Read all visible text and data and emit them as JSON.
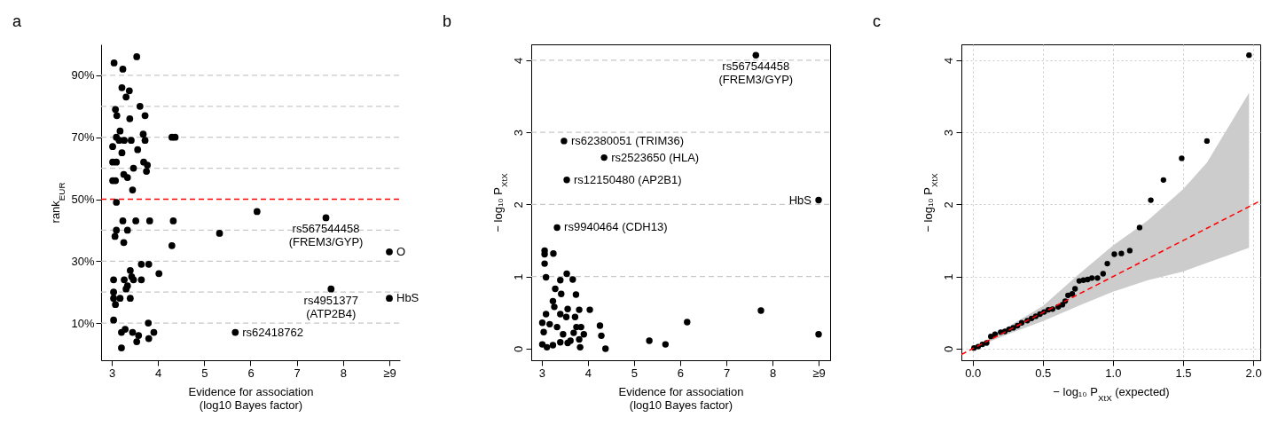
{
  "chart_data": [
    {
      "type": "scatter",
      "title": "a",
      "xlabel": "Evidence for association\n(log10 Bayes factor)",
      "ylabel": "rank$_{EUR}$",
      "marker": "circle",
      "color": "#000000",
      "x": [
        3.54,
        3.05,
        3.24,
        3.22,
        3.38,
        3.31,
        3.08,
        3.11,
        3.61,
        3.72,
        3.39,
        3.18,
        3.1,
        3.68,
        3.02,
        3.16,
        3.27,
        3.42,
        3.22,
        3.56,
        3.72,
        3.02,
        3.1,
        3.47,
        3.69,
        3.77,
        3.75,
        3.26,
        3.34,
        3.02,
        3.08,
        3.45,
        3.1,
        3.24,
        3.52,
        3.82,
        3.1,
        3.34,
        3.07,
        3.26,
        4.33,
        4.3,
        3.64,
        3.8,
        4.02,
        3.4,
        3.43,
        3.04,
        3.27,
        3.47,
        3.64,
        3.34,
        3.04,
        3.31,
        3.04,
        3.18,
        3.4,
        3.08,
        3.04,
        3.79,
        3.21,
        3.29,
        3.45,
        3.54,
        3.91,
        3.8,
        3.21,
        3.58,
        4.3,
        4.37,
        6.14,
        7.63,
        5.33,
        9.0,
        7.74,
        9.0,
        5.67
      ],
      "values": [
        96,
        94,
        92,
        86,
        85,
        83,
        79,
        77,
        80,
        77,
        76,
        72,
        70,
        71,
        67,
        69,
        69,
        69,
        65,
        66,
        69,
        62,
        62,
        60,
        62,
        61,
        59,
        58,
        57,
        56,
        56,
        53,
        49,
        43,
        43,
        43,
        40,
        40,
        38,
        36,
        43,
        35,
        29,
        29,
        26,
        27,
        25,
        24,
        24,
        24,
        24,
        22,
        20,
        21,
        18,
        18,
        18,
        16,
        11,
        10,
        7,
        8,
        7,
        4,
        7,
        5,
        2,
        6,
        70,
        70,
        46,
        44,
        39,
        33,
        21,
        18,
        7
      ],
      "xlim": [
        2.77,
        9.23
      ],
      "ylim": [
        -2,
        100
      ],
      "xticks": [
        3,
        4,
        5,
        6,
        7,
        8,
        {
          "value": 9,
          "label": "≥9"
        }
      ],
      "yticks": [
        {
          "value": 10,
          "label": "10%"
        },
        {
          "value": 30,
          "label": "30%"
        },
        {
          "value": 50,
          "label": "50%"
        },
        {
          "value": 70,
          "label": "70%"
        },
        {
          "value": 90,
          "label": "90%"
        }
      ],
      "ref_lines": [
        {
          "axis": "y",
          "value": 10,
          "color": "#c8c8c8",
          "line_style": "dashed"
        },
        {
          "axis": "y",
          "value": 20,
          "color": "#c8c8c8",
          "line_style": "dashed"
        },
        {
          "axis": "y",
          "value": 30,
          "color": "#c8c8c8",
          "line_style": "dashed"
        },
        {
          "axis": "y",
          "value": 40,
          "color": "#c8c8c8",
          "line_style": "dashed"
        },
        {
          "axis": "y",
          "value": 60,
          "color": "#c8c8c8",
          "line_style": "dashed"
        },
        {
          "axis": "y",
          "value": 70,
          "color": "#c8c8c8",
          "line_style": "dashed"
        },
        {
          "axis": "y",
          "value": 80,
          "color": "#c8c8c8",
          "line_style": "dashed"
        },
        {
          "axis": "y",
          "value": 90,
          "color": "#c8c8c8",
          "line_style": "dashed"
        },
        {
          "axis": "y",
          "value": 50,
          "color": "#ff0000",
          "line_style": "dashed"
        }
      ],
      "annotations": [
        {
          "text": "rs567544458\n(FREM3/GYP)",
          "x": 7.63,
          "y": 44
        },
        {
          "text": "rs4951377\n(ATP2B4)",
          "x": 7.74,
          "y": 21
        },
        {
          "text": "O",
          "x": 9,
          "y": 33
        },
        {
          "text": "HbS",
          "x": 9,
          "y": 18
        },
        {
          "text": "rs62418762",
          "x": 5.67,
          "y": 7
        }
      ]
    },
    {
      "type": "scatter",
      "title": "b",
      "xlabel": "Evidence for association\n(log10 Bayes factor)",
      "ylabel": "− log₁₀ P$_{XtX}$",
      "marker": "circle",
      "color": "#000000",
      "x": [
        7.64,
        3.48,
        4.35,
        3.54,
        9.0,
        3.33,
        3.06,
        3.06,
        3.25,
        3.06,
        3.09,
        3.54,
        3.4,
        3.67,
        3.29,
        3.42,
        3.74,
        3.24,
        3.27,
        3.09,
        3.56,
        3.81,
        4.04,
        3.4,
        3.01,
        3.17,
        3.53,
        3.72,
        3.33,
        3.75,
        3.85,
        3.91,
        3.04,
        4.26,
        4.29,
        3.46,
        3.69,
        3.01,
        3.11,
        3.24,
        3.4,
        3.56,
        3.81,
        3.83,
        4.38,
        3.62,
        5.33,
        5.68,
        6.15,
        7.75,
        9.0
      ],
      "values": [
        4.07,
        2.88,
        2.65,
        2.34,
        2.06,
        1.68,
        1.36,
        1.31,
        1.32,
        1.18,
        0.99,
        1.04,
        0.95,
        0.96,
        0.83,
        0.76,
        0.75,
        0.66,
        0.58,
        0.48,
        0.55,
        0.54,
        0.54,
        0.48,
        0.36,
        0.34,
        0.44,
        0.44,
        0.3,
        0.3,
        0.3,
        0.2,
        0.23,
        0.32,
        0.18,
        0.2,
        0.22,
        0.06,
        0.02,
        0.05,
        0.09,
        0.08,
        0.13,
        0.02,
        0.0,
        0.11,
        0.11,
        0.06,
        0.37,
        0.53,
        0.2
      ],
      "xlim": [
        2.77,
        9.25
      ],
      "ylim": [
        -0.16,
        4.22
      ],
      "xticks": [
        3,
        4,
        5,
        6,
        7,
        8,
        {
          "value": 9,
          "label": "≥9"
        }
      ],
      "yticks": [
        0,
        1,
        2,
        3,
        4
      ],
      "ref_lines": [
        {
          "axis": "y",
          "value": 1,
          "color": "#c8c8c8",
          "line_style": "dashed"
        },
        {
          "axis": "y",
          "value": 2,
          "color": "#c8c8c8",
          "line_style": "dashed"
        },
        {
          "axis": "y",
          "value": 3,
          "color": "#c8c8c8",
          "line_style": "dashed"
        },
        {
          "axis": "y",
          "value": 4,
          "color": "#c8c8c8",
          "line_style": "dashed"
        }
      ],
      "annotations": [
        {
          "text": "rs567544458\n(FREM3/GYP)",
          "x": 7.64,
          "y": 4.07
        },
        {
          "text": "rs62380051 (TRIM36)",
          "x": 3.48,
          "y": 2.88
        },
        {
          "text": "rs2523650 (HLA)",
          "x": 4.35,
          "y": 2.65
        },
        {
          "text": "rs12150480 (AP2B1)",
          "x": 3.54,
          "y": 2.34
        },
        {
          "text": "HbS",
          "x": 9.0,
          "y": 2.06
        },
        {
          "text": "rs9940464 (CDH13)",
          "x": 3.33,
          "y": 1.68
        }
      ]
    },
    {
      "type": "scatter",
      "title": "c",
      "xlabel": "− log₁₀ P$_{XtX}$ (expected)",
      "ylabel": "− log₁₀ P$_{XtX}$",
      "marker": "circle",
      "grid": true,
      "xlim": [
        -0.08,
        2.05
      ],
      "ylim": [
        -0.16,
        4.22
      ],
      "xticks": [
        {
          "value": 0,
          "label": "0.0"
        },
        0.5,
        {
          "value": 1,
          "label": "1.0"
        },
        1.5,
        {
          "value": 2,
          "label": "2.0"
        }
      ],
      "yticks": [
        0,
        1,
        2,
        3,
        4
      ],
      "series": [
        {
          "type": "line",
          "marker": "none",
          "color": "#ff0000",
          "line_style": "dashed",
          "x": [
            -0.08,
            0,
            0.25,
            0.5,
            0.75,
            1,
            1.25,
            1.5,
            1.67,
            1.97,
            2.05
          ],
          "values": [
            -0.08,
            0,
            0.25,
            0.5,
            0.75,
            1,
            1.25,
            1.5,
            1.67,
            1.97,
            2.05
          ],
          "lower": [
            null,
            0,
            0.2,
            0.38,
            0.59,
            0.79,
            0.95,
            1.07,
            1.19,
            1.4,
            null
          ],
          "upper": [
            null,
            0,
            0.3,
            0.59,
            1.02,
            1.43,
            1.78,
            2.21,
            2.58,
            3.55,
            null
          ]
        },
        {
          "color": "#000000",
          "x": [
            1.97,
            1.67,
            1.49,
            1.36,
            1.27,
            1.19,
            1.12,
            1.06,
            1.01,
            0.96,
            0.93,
            0.89,
            0.85,
            0.82,
            0.79,
            0.76,
            0.73,
            0.71,
            0.68,
            0.66,
            0.64,
            0.61,
            0.57,
            0.54,
            0.51,
            0.48,
            0.45,
            0.42,
            0.39,
            0.35,
            0.32,
            0.29,
            0.26,
            0.23,
            0.2,
            0.16,
            0.13,
            0.1,
            0.07,
            0.04,
            0.01
          ],
          "values": [
            4.07,
            2.88,
            2.64,
            2.34,
            2.06,
            1.68,
            1.36,
            1.32,
            1.31,
            1.18,
            1.04,
            0.98,
            0.98,
            0.96,
            0.95,
            0.94,
            0.83,
            0.76,
            0.74,
            0.66,
            0.61,
            0.58,
            0.55,
            0.54,
            0.51,
            0.48,
            0.45,
            0.42,
            0.39,
            0.36,
            0.32,
            0.29,
            0.27,
            0.24,
            0.23,
            0.2,
            0.17,
            0.08,
            0.06,
            0.03,
            0.01
          ]
        }
      ]
    }
  ]
}
